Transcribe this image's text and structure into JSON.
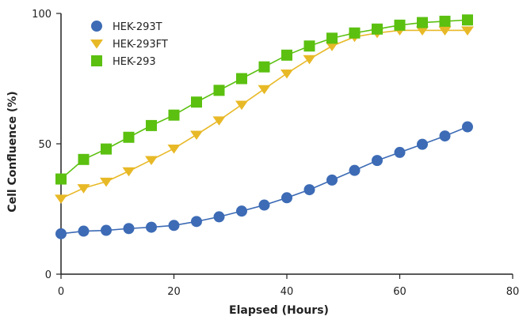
{
  "chart_data": {
    "type": "line",
    "title": "",
    "xlabel": "Elapsed (Hours)",
    "ylabel": "Cell Confluence (%)",
    "xlim": [
      0,
      80
    ],
    "ylim": [
      0,
      100
    ],
    "xticks": [
      0,
      20,
      40,
      60,
      80
    ],
    "yticks": [
      0,
      50,
      100
    ],
    "grid": false,
    "legend_position": "top-left",
    "series": [
      {
        "name": "HEK-293T",
        "color": "#3d6bb5",
        "marker": "circle",
        "x": [
          0,
          4,
          8,
          12,
          16,
          20,
          24,
          28,
          32,
          36,
          40,
          44,
          48,
          52,
          56,
          60,
          64,
          68,
          72
        ],
        "y": [
          15.5,
          16.5,
          16.8,
          17.5,
          18,
          18.7,
          20.2,
          22,
          24.2,
          26.5,
          29.3,
          32.4,
          36.1,
          39.8,
          43.6,
          46.7,
          49.8,
          53,
          56.5
        ]
      },
      {
        "name": "HEK-293FT",
        "color": "#e8b927",
        "marker": "triangle-down",
        "x": [
          0,
          4,
          8,
          12,
          16,
          20,
          24,
          28,
          32,
          36,
          40,
          44,
          48,
          52,
          56,
          60,
          64,
          68,
          72
        ],
        "y": [
          29,
          33,
          35.5,
          39.5,
          43.8,
          48.2,
          53.5,
          59,
          65,
          71,
          77,
          82.5,
          87.5,
          91,
          92.5,
          93.5,
          93.5,
          93.5,
          93.5
        ]
      },
      {
        "name": "HEK-293",
        "color": "#5bc010",
        "marker": "square",
        "x": [
          0,
          4,
          8,
          12,
          16,
          20,
          24,
          28,
          32,
          36,
          40,
          44,
          48,
          52,
          56,
          60,
          64,
          68,
          72
        ],
        "y": [
          36.5,
          44,
          48,
          52.5,
          57,
          61,
          66,
          70.5,
          75,
          79.5,
          84,
          87.5,
          90.5,
          92.5,
          94,
          95.5,
          96.5,
          97,
          97.5
        ]
      }
    ]
  }
}
